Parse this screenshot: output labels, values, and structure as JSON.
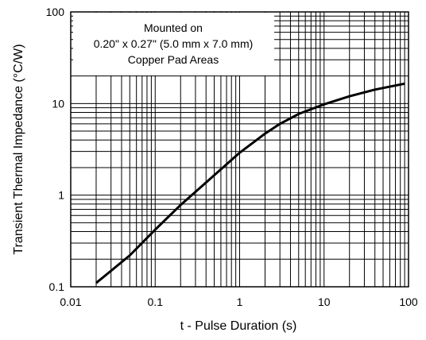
{
  "chart_data": {
    "type": "line",
    "xlabel": "t - Pulse Duration (s)",
    "ylabel": "Transient Thermal Impedance (°C/W)",
    "x_scale": "log",
    "y_scale": "log",
    "xlim": [
      0.01,
      100
    ],
    "ylim": [
      0.1,
      100
    ],
    "x_ticks": [
      0.01,
      0.1,
      1,
      10,
      100
    ],
    "x_tick_labels": [
      "0.01",
      "0.1",
      "1",
      "10",
      "100"
    ],
    "y_ticks": [
      0.1,
      1,
      10,
      100
    ],
    "y_tick_labels": [
      "0.1",
      "1",
      "10",
      "100"
    ],
    "grid": true,
    "annotation": [
      "Mounted on",
      "0.20\" x 0.27\" (5.0 mm x 7.0 mm)",
      "Copper Pad Areas"
    ],
    "series": [
      {
        "color": "#000000",
        "x": [
          0.02,
          0.05,
          0.1,
          0.2,
          0.5,
          1,
          2,
          3,
          5,
          10,
          20,
          40,
          90
        ],
        "y": [
          0.11,
          0.22,
          0.42,
          0.78,
          1.65,
          2.9,
          4.7,
          6.0,
          7.7,
          9.8,
          12.0,
          14.2,
          16.5
        ]
      }
    ]
  }
}
